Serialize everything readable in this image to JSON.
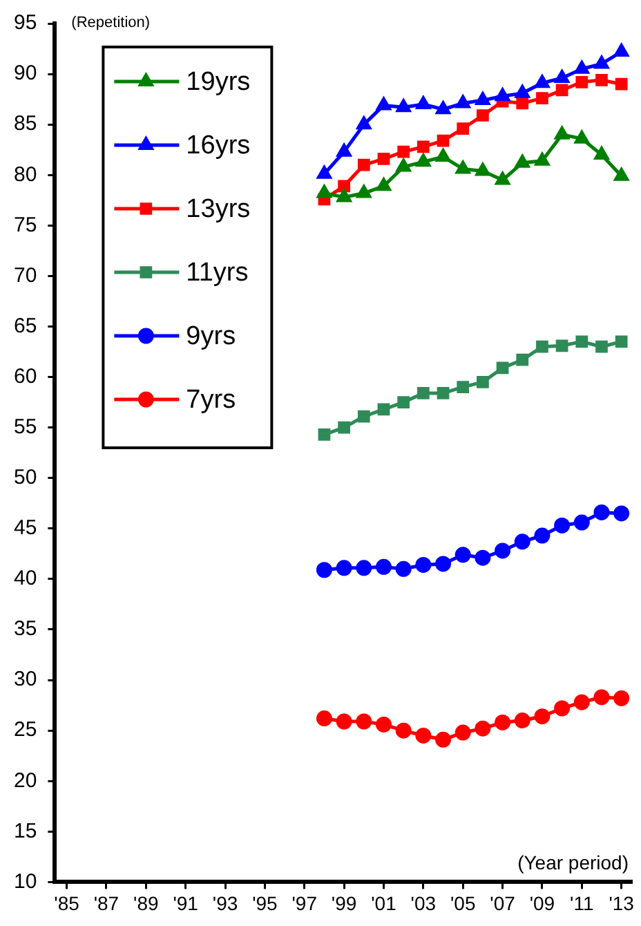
{
  "chart_data": {
    "type": "line",
    "ylabel": "(Repetition)",
    "xlabel": "(Year period)",
    "x": [
      1998,
      1999,
      2000,
      2001,
      2002,
      2003,
      2004,
      2005,
      2006,
      2007,
      2008,
      2009,
      2010,
      2011,
      2012,
      2013
    ],
    "series": [
      {
        "name": "19yrs",
        "color": "#008000",
        "marker": "triangle",
        "values": [
          78.2,
          77.8,
          78.2,
          78.9,
          80.8,
          81.3,
          81.8,
          80.6,
          80.4,
          79.5,
          81.2,
          81.4,
          84.0,
          83.6,
          82.0,
          79.9
        ]
      },
      {
        "name": "16yrs",
        "color": "#0000ff",
        "marker": "triangle",
        "values": [
          80.1,
          82.3,
          85.0,
          86.9,
          86.7,
          87.0,
          86.5,
          87.1,
          87.4,
          87.8,
          88.1,
          89.1,
          89.6,
          90.5,
          91.0,
          92.2
        ]
      },
      {
        "name": "13yrs",
        "color": "#ff0000",
        "marker": "square",
        "values": [
          77.6,
          78.9,
          81.0,
          81.6,
          82.3,
          82.8,
          83.4,
          84.6,
          85.9,
          87.3,
          87.1,
          87.6,
          88.4,
          89.2,
          89.4,
          89.0
        ]
      },
      {
        "name": "11yrs",
        "color": "#2e8b57",
        "marker": "square",
        "values": [
          54.3,
          55.0,
          56.1,
          56.8,
          57.5,
          58.4,
          58.4,
          59.0,
          59.5,
          60.9,
          61.7,
          63.0,
          63.1,
          63.5,
          63.0,
          63.5
        ]
      },
      {
        "name": "9yrs",
        "color": "#0000ff",
        "marker": "circle",
        "values": [
          40.9,
          41.1,
          41.1,
          41.2,
          41.0,
          41.4,
          41.5,
          42.4,
          42.1,
          42.8,
          43.7,
          44.3,
          45.3,
          45.6,
          46.6,
          46.5
        ]
      },
      {
        "name": "7yrs",
        "color": "#ff0000",
        "marker": "circle",
        "values": [
          26.2,
          25.9,
          25.9,
          25.6,
          25.0,
          24.5,
          24.1,
          24.8,
          25.2,
          25.8,
          26.0,
          26.4,
          27.2,
          27.8,
          28.3,
          28.2
        ]
      }
    ],
    "xlim": [
      1984.4,
      2013.5
    ],
    "xticks": [
      {
        "value": 1985,
        "label": "'85"
      },
      {
        "value": 1987,
        "label": "'87"
      },
      {
        "value": 1989,
        "label": "'89"
      },
      {
        "value": 1991,
        "label": "'91"
      },
      {
        "value": 1993,
        "label": "'93"
      },
      {
        "value": 1995,
        "label": "'95"
      },
      {
        "value": 1997,
        "label": "'97"
      },
      {
        "value": 1999,
        "label": "'99"
      },
      {
        "value": 2001,
        "label": "'01"
      },
      {
        "value": 2003,
        "label": "'03"
      },
      {
        "value": 2005,
        "label": "'05"
      },
      {
        "value": 2007,
        "label": "'07"
      },
      {
        "value": 2009,
        "label": "'09"
      },
      {
        "value": 2011,
        "label": "'11"
      },
      {
        "value": 2013,
        "label": "'13"
      }
    ],
    "ylim": [
      10,
      95
    ],
    "yticks": [
      10,
      15,
      20,
      25,
      30,
      35,
      40,
      45,
      50,
      55,
      60,
      65,
      70,
      75,
      80,
      85,
      90,
      95
    ],
    "grid": false,
    "legend": "top left",
    "line_style": "solid"
  }
}
